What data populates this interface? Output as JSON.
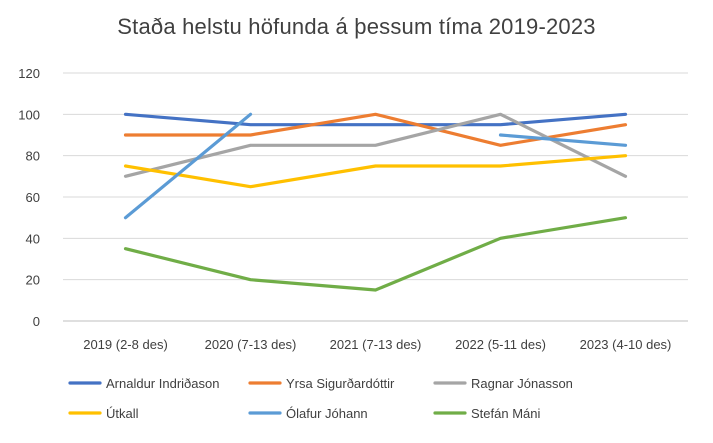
{
  "chart_data": {
    "type": "line",
    "title": "Staða helstu höfunda á þessum tíma 2019-2023",
    "xlabel": "",
    "ylabel": "",
    "categories": [
      "2019 (2-8 des)",
      "2020 (7-13 des)",
      "2021 (7-13 des)",
      "2022 (5-11 des)",
      "2023 (4-10 des)"
    ],
    "ylim": [
      0,
      120
    ],
    "yticks": [
      0,
      20,
      40,
      60,
      80,
      100,
      120
    ],
    "grid": true,
    "legend_position": "bottom",
    "series": [
      {
        "name": "Arnaldur Indriðason",
        "color": "#4472C4",
        "points": [
          [
            0,
            100
          ],
          [
            1,
            95
          ],
          [
            2,
            95
          ],
          [
            3,
            95
          ],
          [
            4,
            100
          ]
        ]
      },
      {
        "name": "Yrsa Sigurðardóttir",
        "color": "#ED7D31",
        "points": [
          [
            0,
            90
          ],
          [
            1,
            90
          ],
          [
            2,
            100
          ],
          [
            3,
            85
          ],
          [
            4,
            95
          ]
        ]
      },
      {
        "name": "Ragnar Jónasson",
        "color": "#A5A5A5",
        "points": [
          [
            0,
            70
          ],
          [
            1,
            85
          ],
          [
            2,
            85
          ],
          [
            3,
            100
          ],
          [
            4,
            70
          ]
        ]
      },
      {
        "name": "Útkall",
        "color": "#FFC000",
        "points": [
          [
            0,
            75
          ],
          [
            1,
            65
          ],
          [
            2,
            75
          ],
          [
            3,
            75
          ],
          [
            4,
            80
          ]
        ]
      },
      {
        "name": "Ólafur Jóhann",
        "color": "#5B9BD5",
        "points": [
          [
            0,
            50
          ],
          [
            1,
            100
          ],
          [
            3,
            90
          ],
          [
            4,
            85
          ]
        ]
      },
      {
        "name": "Stefán Máni",
        "color": "#70AD47",
        "points": [
          [
            0,
            35
          ],
          [
            1,
            20
          ],
          [
            2,
            15
          ],
          [
            3,
            40
          ],
          [
            4,
            50
          ]
        ]
      }
    ]
  }
}
